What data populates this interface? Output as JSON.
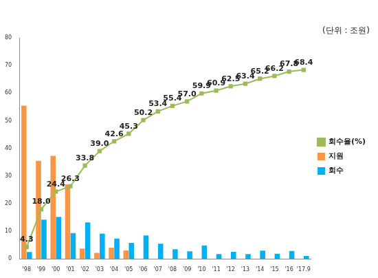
{
  "chart_data": {
    "type": "bar",
    "annotation": "(단위 : 조원)",
    "categories": [
      "'98",
      "'99",
      "'00",
      "'01",
      "'02",
      "'03",
      "'04",
      "'05",
      "'06",
      "'07",
      "'08",
      "'09",
      "'10",
      "'11",
      "'12",
      "'13",
      "'14",
      "'15",
      "'16",
      "'17.9"
    ],
    "series": [
      {
        "name": "지원",
        "type": "bar",
        "color": "#f79646",
        "values": [
          55.5,
          35.5,
          37.3,
          27.0,
          3.8,
          2.2,
          4.1,
          3.1,
          0,
          0,
          0,
          0,
          0,
          0,
          0,
          0,
          0,
          0,
          0,
          0
        ]
      },
      {
        "name": "회수",
        "type": "bar",
        "color": "#00b0f0",
        "values": [
          2.5,
          14.2,
          15.2,
          9.4,
          13.2,
          9.2,
          7.4,
          5.8,
          8.5,
          5.5,
          3.5,
          2.8,
          4.9,
          1.8,
          2.6,
          1.8,
          3.0,
          1.9,
          2.9,
          1.1
        ]
      },
      {
        "name": "회수율(%)",
        "type": "line",
        "color": "#9bbb59",
        "marker": "square",
        "line_style": "solid",
        "data_labels": true,
        "values": [
          4.3,
          18.0,
          24.4,
          26.3,
          33.8,
          39.0,
          42.6,
          45.3,
          50.2,
          53.4,
          55.4,
          57.0,
          59.9,
          60.9,
          62.5,
          63.4,
          65.2,
          66.2,
          67.8,
          68.4
        ],
        "value_labels": [
          "4.3",
          "18.0",
          "24.4",
          "26.3",
          "33.8",
          "39.0",
          "42.6",
          "45.3",
          "50.2",
          "53.4",
          "55.4",
          "57.0",
          "59.9",
          "60.9",
          "62.5",
          "63.4",
          "65.2",
          "66.2",
          "67.8",
          "68.4"
        ]
      }
    ],
    "ylim": [
      0,
      80
    ],
    "yticks": [
      0,
      10,
      20,
      30,
      40,
      50,
      60,
      70,
      80
    ],
    "grid": false,
    "legend": "right"
  }
}
